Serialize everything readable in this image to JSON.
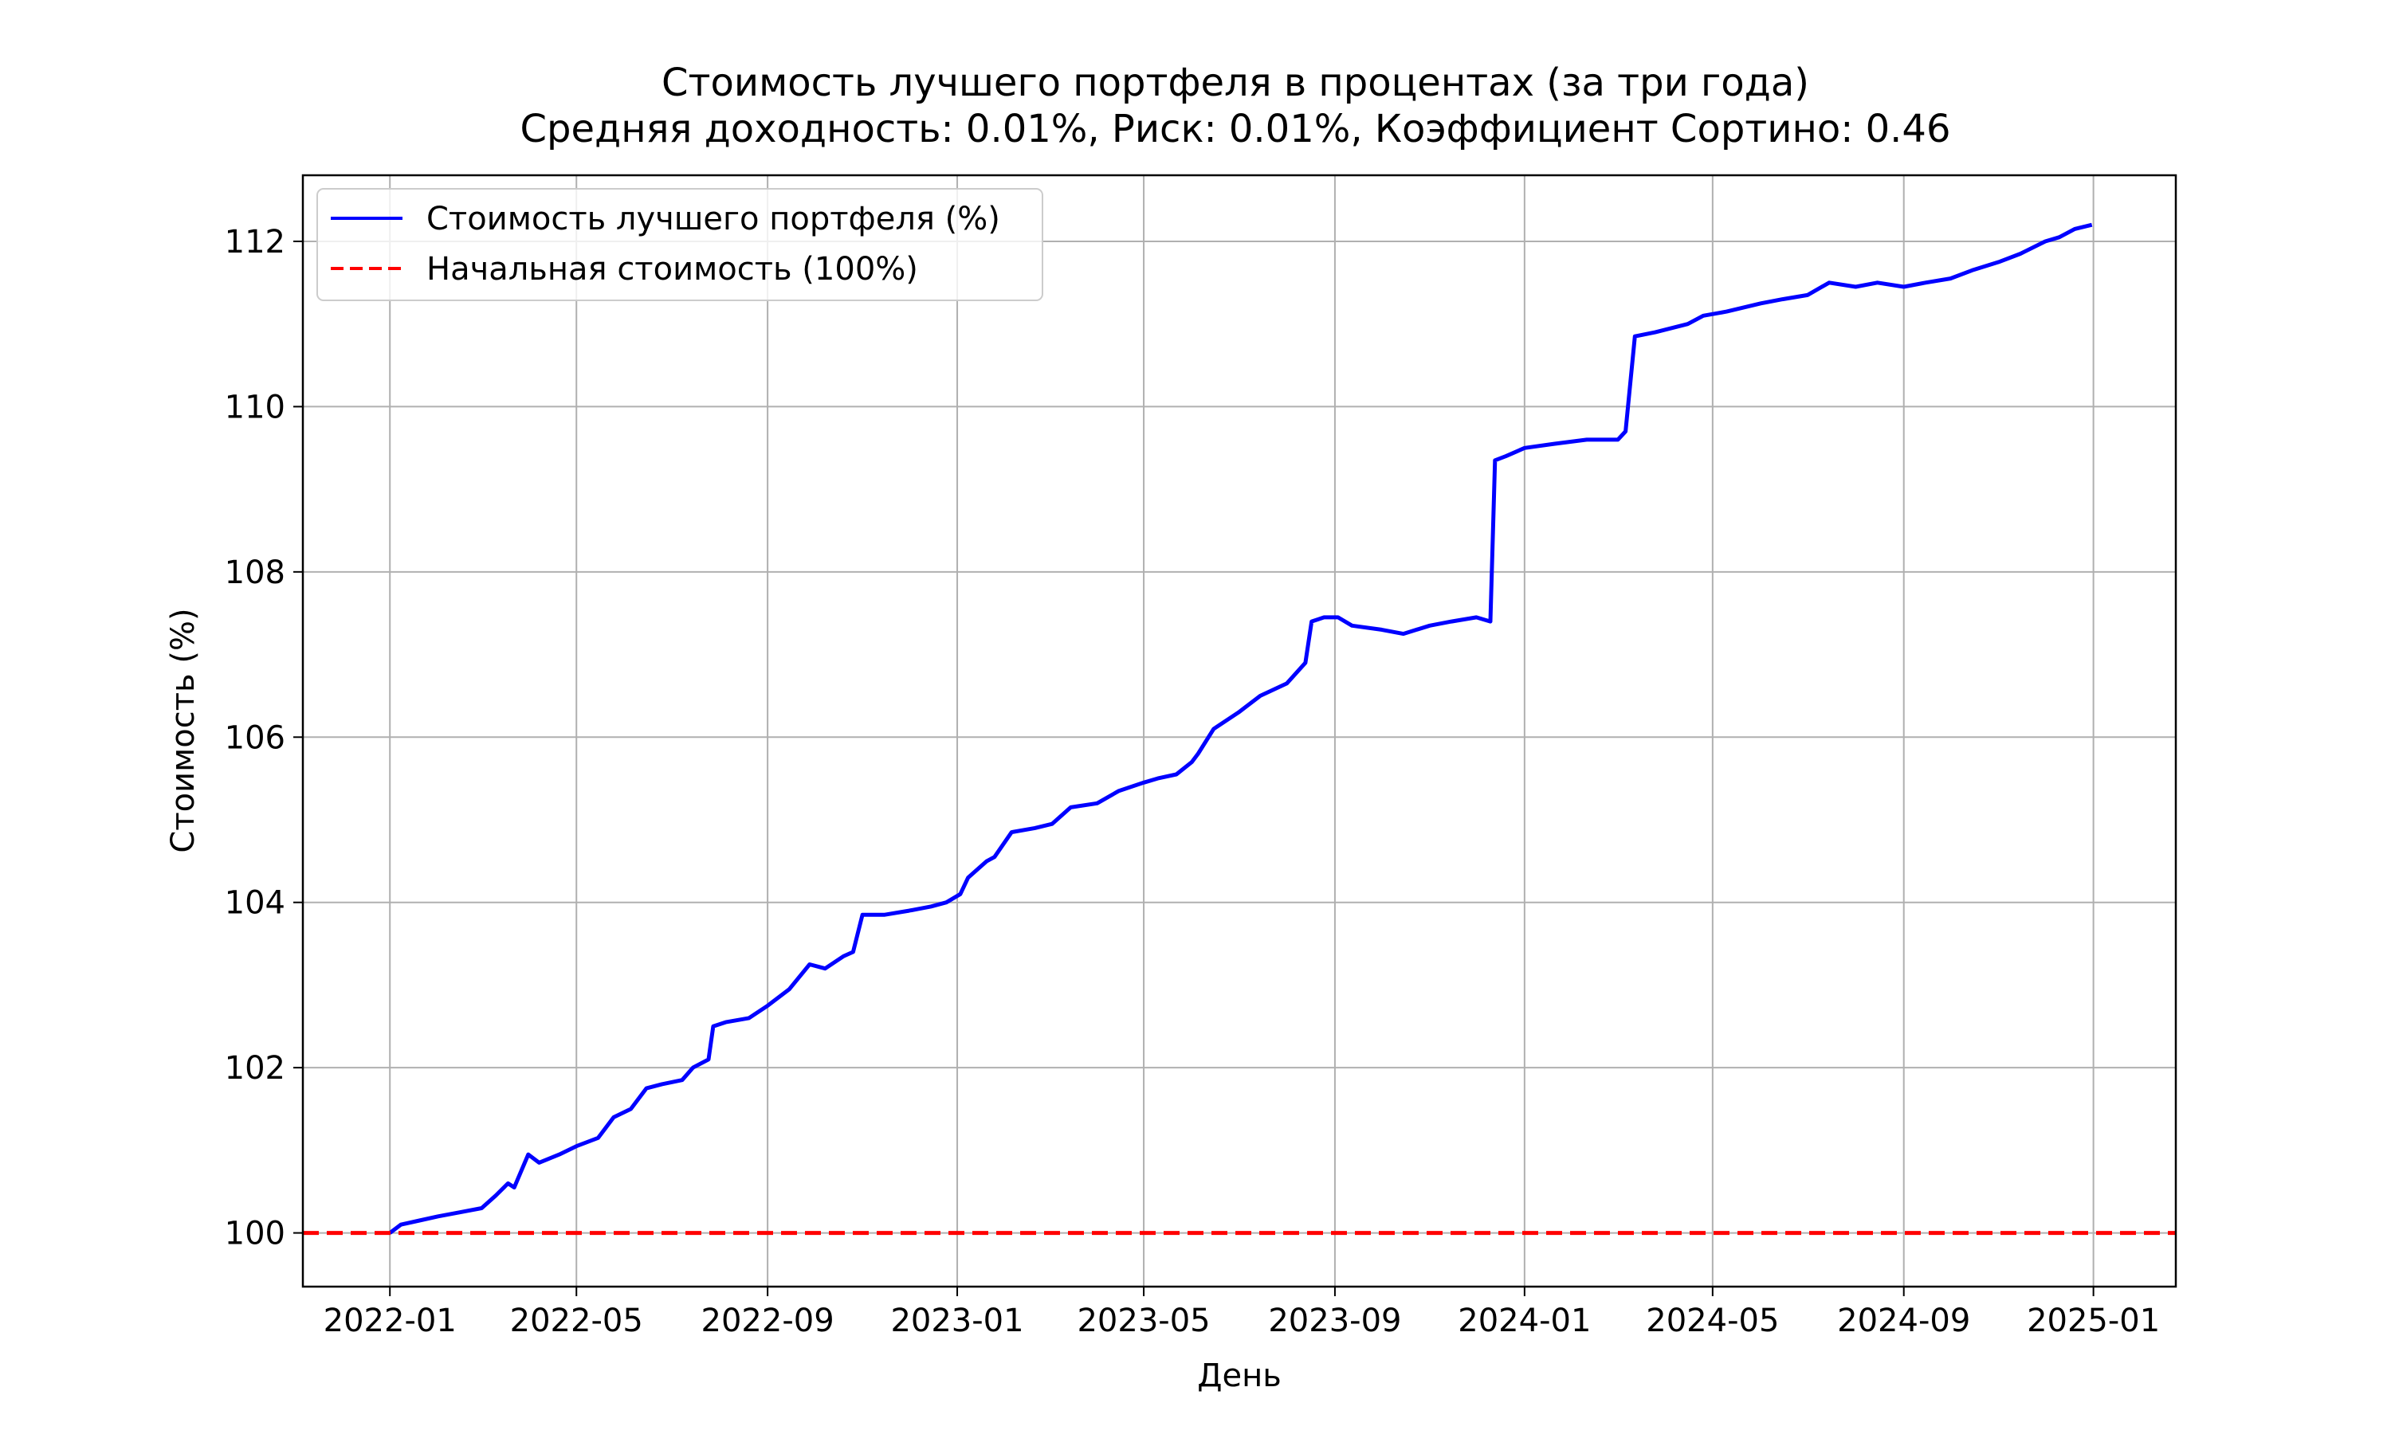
{
  "chart_data": {
    "type": "line",
    "title": "Стоимость лучшего портфеля в процентах (за три года)",
    "subtitle": "Средняя доходность: 0.01%, Риск: 0.01%, Коэффициент Сортино: 0.46",
    "xlabel": "День",
    "ylabel": "Стоимость (%)",
    "xlim": [
      "2021-11-06",
      "2025-02-23"
    ],
    "ylim": [
      99.35,
      112.8
    ],
    "x_tick_labels": [
      "2022-01",
      "2022-05",
      "2022-09",
      "2023-01",
      "2023-05",
      "2023-09",
      "2024-01",
      "2024-05",
      "2024-09",
      "2025-01"
    ],
    "y_tick_labels": [
      "100",
      "102",
      "104",
      "106",
      "108",
      "110",
      "112"
    ],
    "y_ticks": [
      100,
      102,
      104,
      106,
      108,
      110,
      112
    ],
    "grid": true,
    "legend_position": "upper-left",
    "series": [
      {
        "name": "Стоимость лучшего портфеля (%)",
        "color": "#0000ff",
        "style": "solid",
        "x": [
          "2022-01-01",
          "2022-01-08",
          "2022-01-20",
          "2022-02-01",
          "2022-02-15",
          "2022-03-01",
          "2022-03-10",
          "2022-03-18",
          "2022-03-22",
          "2022-03-31",
          "2022-04-07",
          "2022-04-20",
          "2022-05-01",
          "2022-05-15",
          "2022-05-25",
          "2022-06-05",
          "2022-06-15",
          "2022-06-25",
          "2022-07-08",
          "2022-07-15",
          "2022-07-25",
          "2022-07-28",
          "2022-08-05",
          "2022-08-20",
          "2022-09-01",
          "2022-09-15",
          "2022-09-28",
          "2022-10-08",
          "2022-10-20",
          "2022-10-26",
          "2022-11-01",
          "2022-11-15",
          "2022-12-01",
          "2022-12-15",
          "2022-12-25",
          "2023-01-03",
          "2023-01-08",
          "2023-01-20",
          "2023-01-25",
          "2023-02-05",
          "2023-02-20",
          "2023-03-03",
          "2023-03-15",
          "2023-04-01",
          "2023-04-15",
          "2023-05-01",
          "2023-05-10",
          "2023-05-22",
          "2023-06-01",
          "2023-06-05",
          "2023-06-15",
          "2023-07-01",
          "2023-07-15",
          "2023-08-01",
          "2023-08-13",
          "2023-08-17",
          "2023-08-25",
          "2023-09-03",
          "2023-09-12",
          "2023-10-01",
          "2023-10-15",
          "2023-11-01",
          "2023-11-15",
          "2023-12-01",
          "2023-12-10",
          "2023-12-13",
          "2023-12-20",
          "2024-01-01",
          "2024-01-20",
          "2024-02-10",
          "2024-03-01",
          "2024-03-06",
          "2024-03-12",
          "2024-03-25",
          "2024-04-15",
          "2024-04-25",
          "2024-05-10",
          "2024-06-01",
          "2024-06-15",
          "2024-07-01",
          "2024-07-15",
          "2024-08-01",
          "2024-08-15",
          "2024-09-01",
          "2024-09-15",
          "2024-10-01",
          "2024-10-15",
          "2024-11-01",
          "2024-11-15",
          "2024-12-01",
          "2024-12-10",
          "2024-12-20",
          "2024-12-31"
        ],
        "y": [
          100.0,
          100.1,
          100.15,
          100.2,
          100.25,
          100.3,
          100.45,
          100.6,
          100.55,
          100.95,
          100.85,
          100.95,
          101.05,
          101.15,
          101.4,
          101.5,
          101.75,
          101.8,
          101.85,
          102.0,
          102.1,
          102.5,
          102.55,
          102.6,
          102.75,
          102.95,
          103.25,
          103.2,
          103.35,
          103.4,
          103.85,
          103.85,
          103.9,
          103.95,
          104.0,
          104.1,
          104.3,
          104.5,
          104.55,
          104.85,
          104.9,
          104.95,
          105.15,
          105.2,
          105.35,
          105.45,
          105.5,
          105.55,
          105.7,
          105.8,
          106.1,
          106.3,
          106.5,
          106.65,
          106.9,
          107.4,
          107.45,
          107.45,
          107.35,
          107.3,
          107.25,
          107.35,
          107.4,
          107.45,
          107.4,
          109.35,
          109.4,
          109.5,
          109.55,
          109.6,
          109.6,
          109.7,
          110.85,
          110.9,
          111.0,
          111.1,
          111.15,
          111.25,
          111.3,
          111.35,
          111.5,
          111.45,
          111.5,
          111.45,
          111.5,
          111.55,
          111.65,
          111.75,
          111.85,
          112.0,
          112.05,
          112.15,
          112.2
        ]
      },
      {
        "name": "Начальная стоимость (100%)",
        "color": "#ff0000",
        "style": "dashed",
        "x": [
          "2021-11-06",
          "2025-02-23"
        ],
        "y": [
          100,
          100
        ]
      }
    ]
  }
}
